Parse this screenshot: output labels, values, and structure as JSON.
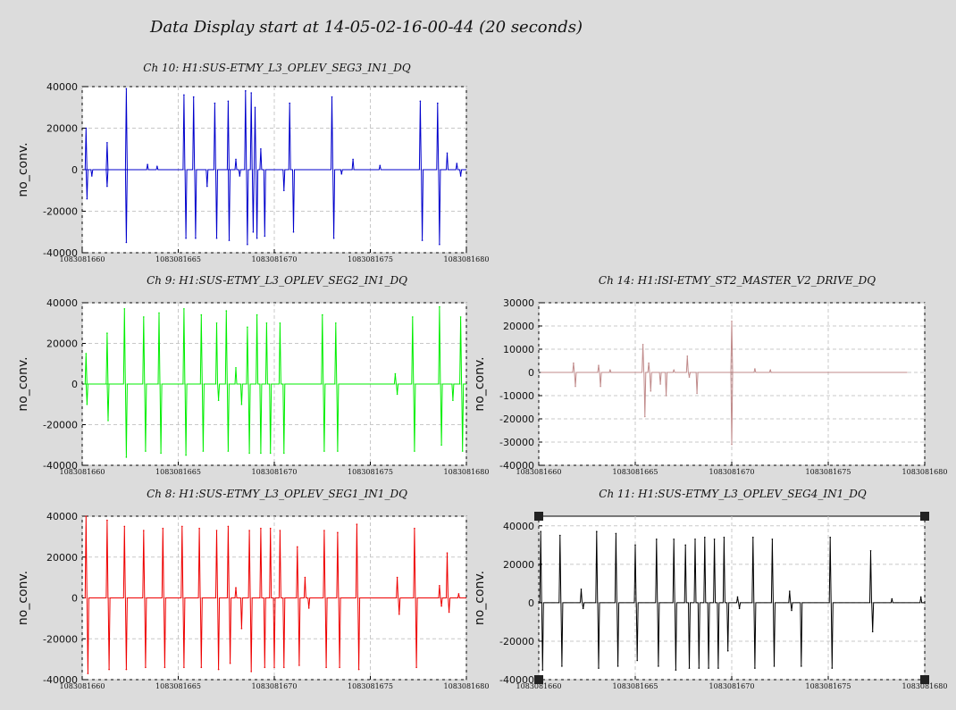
{
  "main_title": "Data Display start at 14-05-02-16-00-44 (20 seconds)",
  "chart_data": [
    {
      "type": "line",
      "id": "ch10",
      "title": "Ch 10: H1:SUS-ETMY_L3_OPLEV_SEG3_IN1_DQ",
      "ylabel": "no_conv.",
      "xlabel": "",
      "color": "#0000cc",
      "xlim": [
        1083081660,
        1083081680
      ],
      "ylim": [
        -40000,
        40000
      ],
      "xticks": [
        1083081660,
        1083081665,
        1083081670,
        1083081675,
        1083081680
      ],
      "yticks": [
        -40000,
        -20000,
        0,
        20000,
        40000
      ],
      "grid": true,
      "spikes": [
        [
          1083081660.2,
          20000
        ],
        [
          1083081660.25,
          -14000
        ],
        [
          1083081660.5,
          -3000
        ],
        [
          1083081661.3,
          13000
        ],
        [
          1083081661.3,
          -8000
        ],
        [
          1083081662.3,
          39000
        ],
        [
          1083081662.3,
          -35000
        ],
        [
          1083081663.4,
          2500
        ],
        [
          1083081663.9,
          1500
        ],
        [
          1083081665.3,
          36000
        ],
        [
          1083081665.4,
          -33000
        ],
        [
          1083081665.8,
          35000
        ],
        [
          1083081665.9,
          -33000
        ],
        [
          1083081666.5,
          -8000
        ],
        [
          1083081666.9,
          32000
        ],
        [
          1083081667.0,
          -33000
        ],
        [
          1083081667.6,
          33000
        ],
        [
          1083081667.65,
          -34000
        ],
        [
          1083081668.0,
          5000
        ],
        [
          1083081668.2,
          -3000
        ],
        [
          1083081668.5,
          38000
        ],
        [
          1083081668.6,
          -36000
        ],
        [
          1083081668.8,
          37000
        ],
        [
          1083081668.9,
          -30000
        ],
        [
          1083081669.0,
          30000
        ],
        [
          1083081669.1,
          -33000
        ],
        [
          1083081669.3,
          10000
        ],
        [
          1083081669.5,
          -32000
        ],
        [
          1083081670.5,
          -10000
        ],
        [
          1083081670.8,
          32000
        ],
        [
          1083081671.0,
          -30000
        ],
        [
          1083081673.0,
          35000
        ],
        [
          1083081673.1,
          -33000
        ],
        [
          1083081673.5,
          -2000
        ],
        [
          1083081674.1,
          5000
        ],
        [
          1083081675.5,
          2000
        ],
        [
          1083081677.6,
          33000
        ],
        [
          1083081677.7,
          -34000
        ],
        [
          1083081678.5,
          32000
        ],
        [
          1083081678.6,
          -36000
        ],
        [
          1083081679.0,
          8000
        ],
        [
          1083081679.5,
          3000
        ],
        [
          1083081679.7,
          -3000
        ]
      ]
    },
    {
      "type": "line",
      "id": "ch9",
      "title": "Ch 9: H1:SUS-ETMY_L3_OPLEV_SEG2_IN1_DQ",
      "ylabel": "no_conv.",
      "xlabel": "",
      "color": "#00ee00",
      "xlim": [
        1083081660,
        1083081680
      ],
      "ylim": [
        -40000,
        40000
      ],
      "xticks": [
        1083081660,
        1083081665,
        1083081670,
        1083081675,
        1083081680
      ],
      "yticks": [
        -40000,
        -20000,
        0,
        20000,
        40000
      ],
      "grid": true,
      "spikes": [
        [
          1083081660.2,
          15000
        ],
        [
          1083081660.25,
          -10000
        ],
        [
          1083081661.3,
          25000
        ],
        [
          1083081661.35,
          -18000
        ],
        [
          1083081662.2,
          37000
        ],
        [
          1083081662.3,
          -36000
        ],
        [
          1083081663.2,
          33000
        ],
        [
          1083081663.3,
          -33000
        ],
        [
          1083081664.0,
          35000
        ],
        [
          1083081664.1,
          -34000
        ],
        [
          1083081665.3,
          37000
        ],
        [
          1083081665.4,
          -35000
        ],
        [
          1083081666.2,
          34000
        ],
        [
          1083081666.3,
          -33000
        ],
        [
          1083081667.0,
          30000
        ],
        [
          1083081667.1,
          -8000
        ],
        [
          1083081667.5,
          36000
        ],
        [
          1083081667.6,
          -33000
        ],
        [
          1083081668.0,
          8000
        ],
        [
          1083081668.3,
          -10000
        ],
        [
          1083081668.6,
          28000
        ],
        [
          1083081668.7,
          -34000
        ],
        [
          1083081669.1,
          34000
        ],
        [
          1083081669.3,
          -34000
        ],
        [
          1083081669.6,
          30000
        ],
        [
          1083081669.8,
          -34000
        ],
        [
          1083081670.3,
          30000
        ],
        [
          1083081670.5,
          -34000
        ],
        [
          1083081672.5,
          34000
        ],
        [
          1083081672.6,
          -33000
        ],
        [
          1083081673.2,
          30000
        ],
        [
          1083081673.3,
          -33000
        ],
        [
          1083081676.3,
          5000
        ],
        [
          1083081676.4,
          -5000
        ],
        [
          1083081677.2,
          33000
        ],
        [
          1083081677.3,
          -33000
        ],
        [
          1083081678.6,
          38000
        ],
        [
          1083081678.7,
          -30000
        ],
        [
          1083081679.3,
          -8000
        ],
        [
          1083081679.7,
          33000
        ],
        [
          1083081679.8,
          -33000
        ]
      ]
    },
    {
      "type": "line",
      "id": "ch14",
      "title": "Ch 14: H1:ISI-ETMY_ST2_MASTER_V2_DRIVE_DQ",
      "ylabel": "no_conv.",
      "xlabel": "",
      "color": "#c08a8a",
      "xlim": [
        1083081660,
        1083081680
      ],
      "ylim": [
        -40000,
        30000
      ],
      "xticks": [
        1083081660,
        1083081665,
        1083081670,
        1083081675,
        1083081680
      ],
      "yticks": [
        -40000,
        -30000,
        -20000,
        -10000,
        0,
        10000,
        20000,
        30000
      ],
      "grid": true,
      "end_x": 1083081679.1,
      "spikes": [
        [
          1083081661.8,
          4000
        ],
        [
          1083081661.9,
          -6000
        ],
        [
          1083081663.1,
          3000
        ],
        [
          1083081663.2,
          -6000
        ],
        [
          1083081663.7,
          1000
        ],
        [
          1083081665.4,
          12000
        ],
        [
          1083081665.5,
          -19000
        ],
        [
          1083081665.7,
          4000
        ],
        [
          1083081665.8,
          -8000
        ],
        [
          1083081666.3,
          -5000
        ],
        [
          1083081666.6,
          -10000
        ],
        [
          1083081667.0,
          1000
        ],
        [
          1083081667.7,
          7000
        ],
        [
          1083081667.8,
          -2000
        ],
        [
          1083081668.2,
          -9000
        ],
        [
          1083081670.0,
          22000
        ],
        [
          1083081670.0,
          -31000
        ],
        [
          1083081671.2,
          1500
        ],
        [
          1083081672.0,
          1000
        ]
      ]
    },
    {
      "type": "line",
      "id": "ch8",
      "title": "Ch 8: H1:SUS-ETMY_L3_OPLEV_SEG1_IN1_DQ",
      "ylabel": "no_conv.",
      "xlabel": "",
      "color": "#ee0000",
      "xlim": [
        1083081660,
        1083081680
      ],
      "ylim": [
        -40000,
        40000
      ],
      "xticks": [
        1083081660,
        1083081665,
        1083081670,
        1083081675,
        1083081680
      ],
      "yticks": [
        -40000,
        -20000,
        0,
        20000,
        40000
      ],
      "grid": true,
      "spikes": [
        [
          1083081660.2,
          40000
        ],
        [
          1083081660.3,
          -37000
        ],
        [
          1083081661.3,
          38000
        ],
        [
          1083081661.4,
          -35000
        ],
        [
          1083081662.2,
          35000
        ],
        [
          1083081662.3,
          -35000
        ],
        [
          1083081663.2,
          33000
        ],
        [
          1083081663.3,
          -34000
        ],
        [
          1083081664.2,
          34000
        ],
        [
          1083081664.3,
          -34000
        ],
        [
          1083081665.2,
          35000
        ],
        [
          1083081665.3,
          -34000
        ],
        [
          1083081666.1,
          34000
        ],
        [
          1083081666.2,
          -34000
        ],
        [
          1083081667.0,
          33000
        ],
        [
          1083081667.1,
          -35000
        ],
        [
          1083081667.6,
          35000
        ],
        [
          1083081667.7,
          -32000
        ],
        [
          1083081668.0,
          5000
        ],
        [
          1083081668.3,
          -15000
        ],
        [
          1083081668.7,
          33000
        ],
        [
          1083081668.8,
          -36000
        ],
        [
          1083081669.3,
          34000
        ],
        [
          1083081669.5,
          -34000
        ],
        [
          1083081669.8,
          34000
        ],
        [
          1083081670.0,
          -34000
        ],
        [
          1083081670.3,
          33000
        ],
        [
          1083081670.5,
          -34000
        ],
        [
          1083081671.2,
          25000
        ],
        [
          1083081671.3,
          -33000
        ],
        [
          1083081671.6,
          10000
        ],
        [
          1083081671.8,
          -5000
        ],
        [
          1083081672.6,
          33000
        ],
        [
          1083081672.7,
          -34000
        ],
        [
          1083081673.3,
          32000
        ],
        [
          1083081673.4,
          -34000
        ],
        [
          1083081674.3,
          36000
        ],
        [
          1083081674.4,
          -35000
        ],
        [
          1083081676.4,
          10000
        ],
        [
          1083081676.5,
          -8000
        ],
        [
          1083081677.3,
          34000
        ],
        [
          1083081677.4,
          -34000
        ],
        [
          1083081678.6,
          6000
        ],
        [
          1083081678.7,
          -4000
        ],
        [
          1083081679.0,
          22000
        ],
        [
          1083081679.1,
          -7000
        ],
        [
          1083081679.6,
          2000
        ]
      ]
    },
    {
      "type": "line",
      "id": "ch11",
      "title": "Ch 11: H1:SUS-ETMY_L3_OPLEV_SEG4_IN1_DQ",
      "ylabel": "no_conv.",
      "xlabel": "",
      "color": "#000000",
      "xlim": [
        1083081660,
        1083081680
      ],
      "ylim": [
        -40000,
        45000
      ],
      "xticks": [
        1083081660,
        1083081665,
        1083081670,
        1083081675,
        1083081680
      ],
      "yticks": [
        -40000,
        -20000,
        0,
        20000,
        40000
      ],
      "grid": true,
      "spikes": [
        [
          1083081660.1,
          37000
        ],
        [
          1083081660.2,
          -35000
        ],
        [
          1083081661.1,
          35000
        ],
        [
          1083081661.2,
          -33000
        ],
        [
          1083081662.2,
          7000
        ],
        [
          1083081662.3,
          -3000
        ],
        [
          1083081663.0,
          37000
        ],
        [
          1083081663.1,
          -34000
        ],
        [
          1083081664.0,
          36000
        ],
        [
          1083081664.1,
          -33000
        ],
        [
          1083081665.0,
          30000
        ],
        [
          1083081665.1,
          -30000
        ],
        [
          1083081666.1,
          33000
        ],
        [
          1083081666.2,
          -33000
        ],
        [
          1083081667.0,
          33000
        ],
        [
          1083081667.1,
          -35000
        ],
        [
          1083081667.6,
          30000
        ],
        [
          1083081667.8,
          -34000
        ],
        [
          1083081668.1,
          33000
        ],
        [
          1083081668.3,
          -34000
        ],
        [
          1083081668.6,
          34000
        ],
        [
          1083081668.8,
          -34000
        ],
        [
          1083081669.1,
          33000
        ],
        [
          1083081669.3,
          -34000
        ],
        [
          1083081669.6,
          34000
        ],
        [
          1083081669.8,
          -25000
        ],
        [
          1083081670.3,
          3000
        ],
        [
          1083081670.4,
          -3000
        ],
        [
          1083081671.1,
          34000
        ],
        [
          1083081671.2,
          -34000
        ],
        [
          1083081672.1,
          33000
        ],
        [
          1083081672.2,
          -33000
        ],
        [
          1083081673.0,
          6000
        ],
        [
          1083081673.1,
          -4000
        ],
        [
          1083081673.6,
          -33000
        ],
        [
          1083081675.1,
          34000
        ],
        [
          1083081675.2,
          -34000
        ],
        [
          1083081677.2,
          27000
        ],
        [
          1083081677.3,
          -15000
        ],
        [
          1083081678.3,
          2000
        ],
        [
          1083081679.8,
          3000
        ]
      ]
    }
  ]
}
